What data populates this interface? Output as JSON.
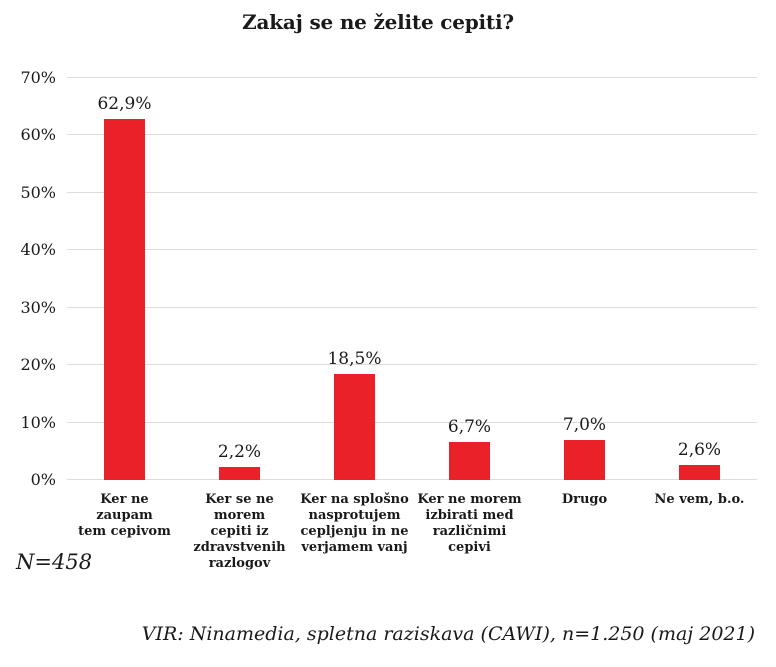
{
  "chart_data": {
    "type": "bar",
    "title": "Zakaj se ne želite cepiti?",
    "categories": [
      "Ker ne\nzaupam\ntem cepivom",
      "Ker se ne morem\ncepiti iz\nzdravstvenih\nrazlogov",
      "Ker na splošno\nnasprotujem\ncepljenju in ne\nverjamem vanj",
      "Ker ne morem\nizbirati med\nrazličnimi\ncepivi",
      "Drugo",
      "Ne vem, b.o."
    ],
    "values": [
      62.9,
      2.2,
      18.5,
      6.7,
      7.0,
      2.6
    ],
    "value_labels": [
      "62,9%",
      "2,2%",
      "18,5%",
      "6,7%",
      "7,0%",
      "2,6%"
    ],
    "ylim": [
      0,
      70
    ],
    "ytick_step": 10,
    "yticks": [
      "0%",
      "10%",
      "20%",
      "30%",
      "40%",
      "50%",
      "60%",
      "70%"
    ],
    "grid": "horizontal",
    "legend": "none",
    "bar_color": "#ea2129",
    "grid_color": "#dcdcdc",
    "text_color": "#1a1a1a",
    "sample_note": "N=458",
    "source": "VIR: Ninamedia, spletna raziskava (CAWI), n=1.250 (maj 2021)"
  }
}
